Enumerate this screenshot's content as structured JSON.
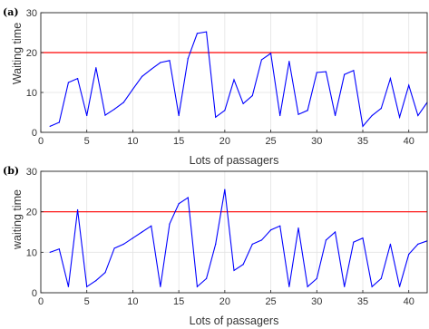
{
  "colors": {
    "series": "#0000ff",
    "threshold": "#ff0000",
    "axis": "#222222",
    "grid": "#e3e3e3"
  },
  "chart_data": [
    {
      "type": "line",
      "panel_label": "(a)",
      "xlabel": "Lots of passagers",
      "ylabel": "Waiting time",
      "xlim": [
        0,
        42
      ],
      "ylim": [
        0,
        30
      ],
      "xticks": [
        0,
        5,
        10,
        15,
        20,
        25,
        30,
        35,
        40
      ],
      "yticks": [
        0,
        10,
        20,
        30
      ],
      "grid": true,
      "threshold": 20,
      "x": [
        1,
        2,
        3,
        4,
        5,
        6,
        7,
        8,
        9,
        10,
        11,
        12,
        13,
        14,
        15,
        16,
        17,
        18,
        19,
        20,
        21,
        22,
        23,
        24,
        25,
        26,
        27,
        28,
        29,
        30,
        31,
        32,
        33,
        34,
        35,
        36,
        37,
        38,
        39,
        40,
        41,
        42
      ],
      "values": [
        1.5,
        2.5,
        12.5,
        13.5,
        4.2,
        16.2,
        4.3,
        5.8,
        7.5,
        10.8,
        14.0,
        15.8,
        17.5,
        18.0,
        4.2,
        18.5,
        24.8,
        25.2,
        3.8,
        5.5,
        13.2,
        7.2,
        9.2,
        18.2,
        19.8,
        4.2,
        17.8,
        4.5,
        5.5,
        15.0,
        15.2,
        4.2,
        14.5,
        15.5,
        1.5,
        4.2,
        6.0,
        13.5,
        3.8,
        11.8,
        4.2,
        7.5
      ]
    },
    {
      "type": "line",
      "panel_label": "(b)",
      "xlabel": "Lots of passagers",
      "ylabel": "waiting time",
      "xlim": [
        0,
        42
      ],
      "ylim": [
        0,
        30
      ],
      "xticks": [
        0,
        5,
        10,
        15,
        20,
        25,
        30,
        35,
        40
      ],
      "yticks": [
        0,
        10,
        20,
        30
      ],
      "grid": true,
      "threshold": 20,
      "x": [
        1,
        2,
        3,
        4,
        5,
        6,
        7,
        8,
        9,
        10,
        11,
        12,
        13,
        14,
        15,
        16,
        17,
        18,
        19,
        20,
        21,
        22,
        23,
        24,
        25,
        26,
        27,
        28,
        29,
        30,
        31,
        32,
        33,
        34,
        35,
        36,
        37,
        38,
        39,
        40,
        41,
        42
      ],
      "values": [
        10.0,
        10.8,
        1.5,
        20.5,
        1.5,
        3.0,
        5.0,
        11.0,
        12.0,
        13.5,
        15.0,
        16.5,
        1.5,
        17.0,
        22.0,
        23.5,
        1.5,
        3.5,
        12.0,
        25.5,
        5.5,
        7.0,
        12.0,
        13.0,
        15.5,
        16.5,
        1.5,
        16.0,
        1.5,
        3.5,
        13.0,
        15.0,
        1.5,
        12.5,
        13.5,
        1.5,
        3.5,
        12.0,
        1.5,
        9.5,
        12.0,
        12.8
      ]
    }
  ]
}
